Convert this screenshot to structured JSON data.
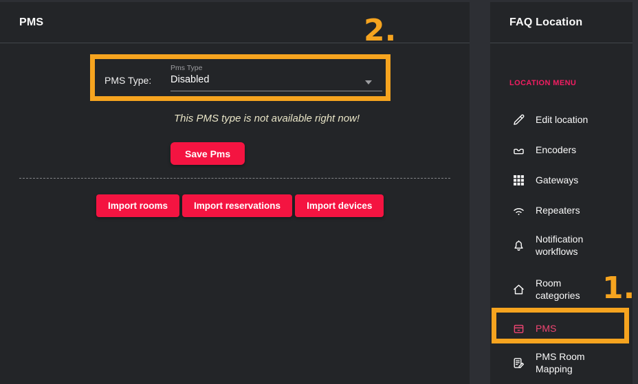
{
  "main": {
    "title": "PMS",
    "form": {
      "label": "PMS Type:",
      "float_label": "Pms Type",
      "selected_value": "Disabled"
    },
    "note": "This PMS type is not available right now!",
    "save_label": "Save Pms",
    "import_buttons": [
      "Import rooms",
      "Import reservations",
      "Import devices"
    ]
  },
  "sidebar": {
    "title": "FAQ Location",
    "menu_heading": "LOCATION MENU",
    "items": [
      {
        "label": "Edit location",
        "icon": "pencil-icon",
        "active": false
      },
      {
        "label": "Encoders",
        "icon": "inbox-icon",
        "active": false
      },
      {
        "label": "Gateways",
        "icon": "grid-icon",
        "active": false
      },
      {
        "label": "Repeaters",
        "icon": "wifi-icon",
        "active": false
      },
      {
        "label": "Notification workflows",
        "icon": "bell-icon",
        "active": false
      },
      {
        "label": "Room categories",
        "icon": "home-icon",
        "active": false
      },
      {
        "label": "PMS",
        "icon": "archive-box-icon",
        "active": true
      },
      {
        "label": "PMS Room Mapping",
        "icon": "document-edit-icon",
        "active": false
      }
    ]
  },
  "annotations": {
    "step1": "1.",
    "step2": "2."
  },
  "colors": {
    "annotation_orange": "#f6a41f",
    "button_red": "#f41441",
    "accent_pink_heading": "#f21d62",
    "accent_pink_active": "#f04572",
    "panel_background": "#232528",
    "page_background": "#2d2f34",
    "note_text": "#e9e5c7"
  }
}
